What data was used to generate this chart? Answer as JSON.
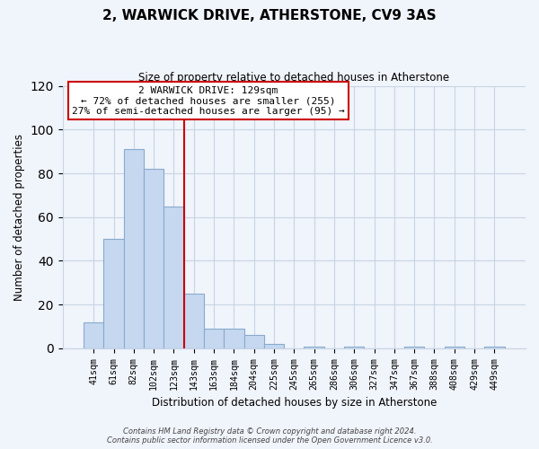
{
  "title": "2, WARWICK DRIVE, ATHERSTONE, CV9 3AS",
  "subtitle": "Size of property relative to detached houses in Atherstone",
  "xlabel": "Distribution of detached houses by size in Atherstone",
  "ylabel": "Number of detached properties",
  "bar_labels": [
    "41sqm",
    "61sqm",
    "82sqm",
    "102sqm",
    "123sqm",
    "143sqm",
    "163sqm",
    "184sqm",
    "204sqm",
    "225sqm",
    "245sqm",
    "265sqm",
    "286sqm",
    "306sqm",
    "327sqm",
    "347sqm",
    "367sqm",
    "388sqm",
    "408sqm",
    "429sqm",
    "449sqm"
  ],
  "bar_values": [
    12,
    50,
    91,
    82,
    65,
    25,
    9,
    9,
    6,
    2,
    0,
    1,
    0,
    1,
    0,
    0,
    1,
    0,
    1,
    0,
    1
  ],
  "bar_color": "#c5d8f0",
  "bar_edge_color": "#88aacc",
  "vline_x": 4.5,
  "vline_color": "#cc0000",
  "annotation_title": "2 WARWICK DRIVE: 129sqm",
  "annotation_line1": "← 72% of detached houses are smaller (255)",
  "annotation_line2": "27% of semi-detached houses are larger (95) →",
  "annotation_box_color": "#ffffff",
  "annotation_box_edge": "#cc0000",
  "ylim": [
    0,
    120
  ],
  "yticks": [
    0,
    20,
    40,
    60,
    80,
    100,
    120
  ],
  "footer_line1": "Contains HM Land Registry data © Crown copyright and database right 2024.",
  "footer_line2": "Contains public sector information licensed under the Open Government Licence v3.0.",
  "bg_color": "#f0f4fb",
  "grid_color": "#c8d4e4"
}
